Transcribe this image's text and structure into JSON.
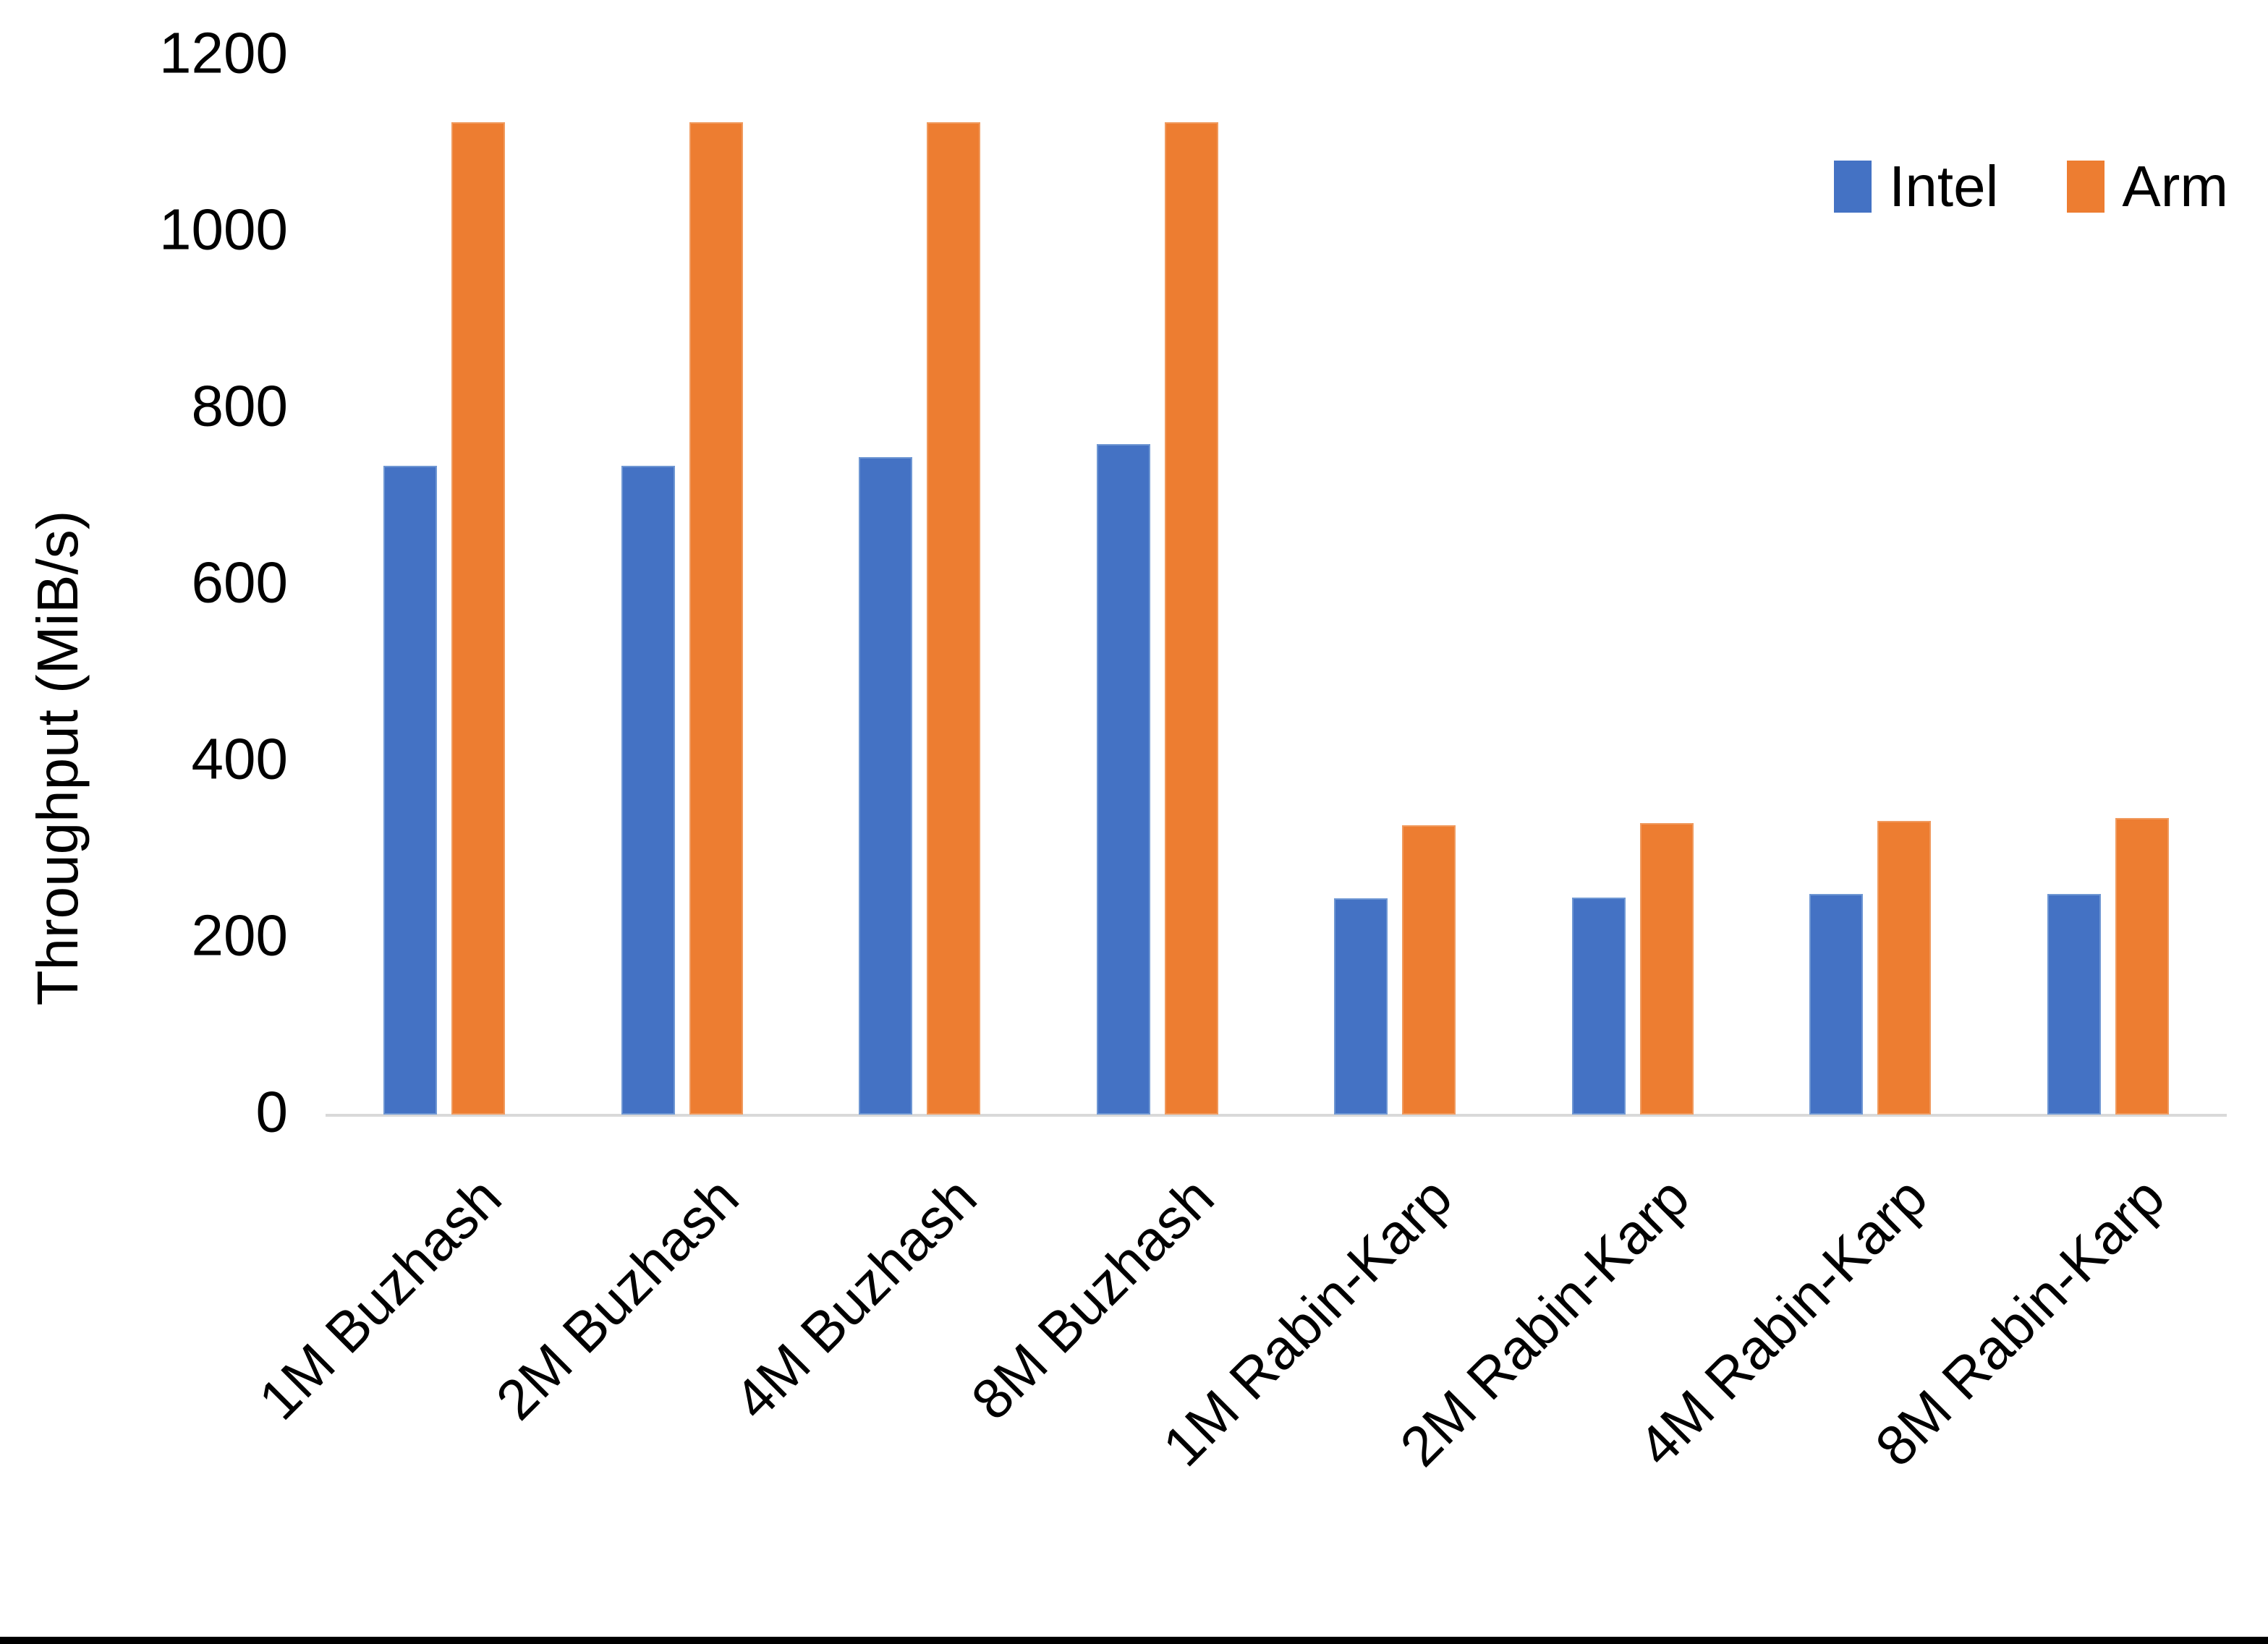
{
  "chart_data": {
    "type": "bar",
    "title": "",
    "categories": [
      "1M Buzhash",
      "2M Buzhash",
      "4M Buzhash",
      "8M Buzhash",
      "1M Rabin-Karp",
      "2M Rabin-Karp",
      "4M Rabin-Karp",
      "8M Rabin-Karp"
    ],
    "series": [
      {
        "name": "Intel",
        "color": "#4472C4",
        "values": [
          735,
          735,
          745,
          760,
          245,
          246,
          250,
          250
        ]
      },
      {
        "name": "Arm",
        "color": "#ED7D31",
        "values": [
          1125,
          1125,
          1125,
          1125,
          328,
          330,
          333,
          336
        ]
      }
    ],
    "xlabel": "",
    "ylabel": "Throughput (MiB/s)",
    "ylim": [
      0,
      1200
    ],
    "yticks": [
      0,
      200,
      400,
      600,
      800,
      1000,
      1200
    ],
    "grid": false,
    "legend_position": "top-right",
    "axis_line_color": "#D9D9D9",
    "text_color": "#000000",
    "background_color": "#FFFFFF"
  }
}
